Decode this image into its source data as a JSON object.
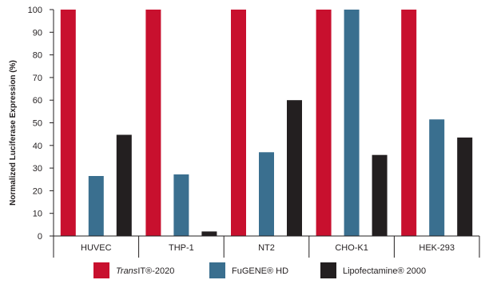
{
  "chart_data": {
    "type": "bar",
    "ylabel": "Normalized Luciferase Expression (%)",
    "ylim": [
      0,
      100
    ],
    "yticks": [
      0,
      10,
      20,
      30,
      40,
      50,
      60,
      70,
      80,
      90,
      100
    ],
    "grid": false,
    "legend_position": "bottom",
    "categories": [
      "HUVEC",
      "THP-1",
      "NT2",
      "CHO-K1",
      "HEK-293"
    ],
    "series": [
      {
        "name": "TransIT®-2020",
        "name_italic_part": "Trans",
        "name_rest": "IT®-2020",
        "color": "#c8102e",
        "values": [
          100,
          100,
          100,
          100,
          100
        ]
      },
      {
        "name": "FuGENE® HD",
        "color": "#3a6f8f",
        "values": [
          26.5,
          27.2,
          37,
          100,
          51.5
        ]
      },
      {
        "name": "Lipofectamine® 2000",
        "color": "#231f20",
        "values": [
          44.7,
          2,
          60,
          35.8,
          43.5
        ]
      }
    ]
  }
}
